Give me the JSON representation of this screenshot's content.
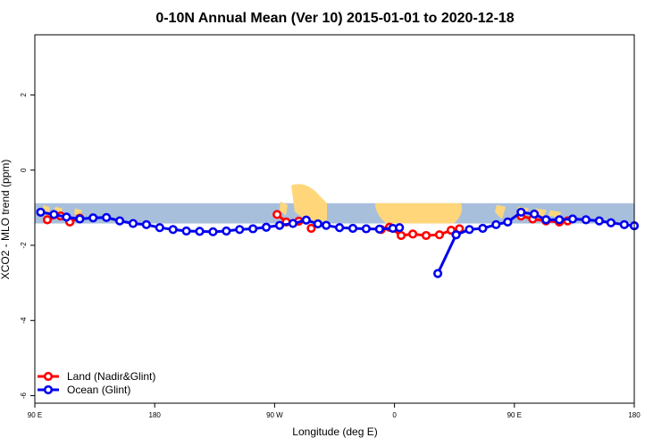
{
  "chart_data": {
    "type": "line",
    "title": "0-10N Annual Mean (Ver 10)   2015-01-01 to 2020-12-18",
    "xlabel": "Longitude (deg E)",
    "ylabel": "XCO2 - MLO trend (ppm)",
    "xlim": [
      30,
      390
    ],
    "ylim": [
      -6.2,
      3.6
    ],
    "x_ticks": [
      {
        "value": 30,
        "label": "90 E"
      },
      {
        "value": 102,
        "label": "180"
      },
      {
        "value": 174,
        "label": "90 W"
      },
      {
        "value": 246,
        "label": "0"
      },
      {
        "value": 318,
        "label": "90 E"
      },
      {
        "value": 390,
        "label": "180"
      }
    ],
    "y_ticks": [
      {
        "value": 2,
        "label": "2"
      },
      {
        "value": 0,
        "label": "0"
      },
      {
        "value": -2,
        "label": "-2"
      },
      {
        "value": -4,
        "label": "-4"
      },
      {
        "value": -6,
        "label": "-6"
      }
    ],
    "map_band": {
      "ymin": -1.42,
      "ymax": -0.88,
      "ocean_color": "#a8bfdc",
      "land_color": "#ffd77a"
    },
    "legend": {
      "position": "bottom-left"
    },
    "series": [
      {
        "name": "Land (Nadir&Glint)",
        "color": "#ff0000",
        "segments": [
          [
            [
              37.5,
              -1.32
            ],
            [
              45.5,
              -1.22
            ],
            [
              51,
              -1.38
            ],
            [
              57,
              -1.28
            ]
          ],
          [
            [
              175.5,
              -1.18
            ],
            [
              181,
              -1.38
            ],
            [
              188.5,
              -1.36
            ]
          ],
          [
            [
              196,
              -1.55
            ]
          ],
          [
            [
              238,
              -1.58
            ],
            [
              243,
              -1.52
            ],
            [
              250,
              -1.74
            ],
            [
              257,
              -1.7
            ],
            [
              265,
              -1.74
            ],
            [
              273,
              -1.72
            ],
            [
              280,
              -1.6
            ],
            [
              285,
              -1.56
            ]
          ],
          [
            [
              322,
              -1.22
            ],
            [
              329,
              -1.3
            ],
            [
              337,
              -1.35
            ],
            [
              345,
              -1.38
            ]
          ],
          [
            [
              350,
              -1.35
            ]
          ]
        ]
      },
      {
        "name": "Ocean (Glint)",
        "color": "#0000ee",
        "segments": [
          [
            [
              33.5,
              -1.12
            ],
            [
              41.5,
              -1.18
            ],
            [
              49,
              -1.25
            ],
            [
              57,
              -1.3
            ],
            [
              65,
              -1.27
            ],
            [
              73,
              -1.26
            ],
            [
              81,
              -1.35
            ],
            [
              89,
              -1.42
            ],
            [
              97,
              -1.45
            ],
            [
              105,
              -1.53
            ],
            [
              113,
              -1.58
            ],
            [
              121,
              -1.62
            ],
            [
              129,
              -1.63
            ],
            [
              137,
              -1.64
            ],
            [
              145,
              -1.62
            ],
            [
              153,
              -1.58
            ],
            [
              161,
              -1.56
            ],
            [
              169,
              -1.52
            ],
            [
              177,
              -1.47
            ],
            [
              185,
              -1.42
            ],
            [
              193,
              -1.33
            ],
            [
              200,
              -1.43
            ],
            [
              205,
              -1.47
            ],
            [
              213,
              -1.53
            ],
            [
              221,
              -1.55
            ],
            [
              229,
              -1.56
            ],
            [
              237,
              -1.57
            ],
            [
              245,
              -1.55
            ],
            [
              249,
              -1.53
            ]
          ],
          [
            [
              272,
              -2.75
            ],
            [
              283,
              -1.72
            ]
          ],
          [
            [
              283,
              -1.72
            ],
            [
              291,
              -1.58
            ],
            [
              299,
              -1.55
            ],
            [
              307,
              -1.45
            ],
            [
              314,
              -1.38
            ],
            [
              322,
              -1.12
            ],
            [
              330,
              -1.17
            ],
            [
              337,
              -1.32
            ],
            [
              345,
              -1.32
            ],
            [
              353,
              -1.3
            ],
            [
              361,
              -1.32
            ],
            [
              369,
              -1.35
            ],
            [
              376,
              -1.4
            ],
            [
              384,
              -1.45
            ],
            [
              390,
              -1.48
            ]
          ]
        ]
      }
    ]
  }
}
